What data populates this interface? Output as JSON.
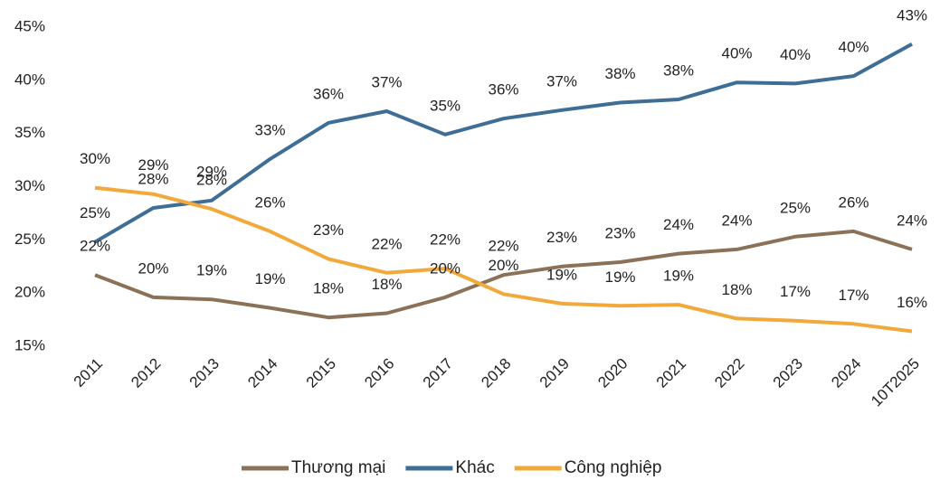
{
  "chart_data": {
    "type": "line",
    "categories": [
      "2011",
      "2012",
      "2013",
      "2014",
      "2015",
      "2016",
      "2017",
      "2018",
      "2019",
      "2020",
      "2021",
      "2022",
      "2023",
      "2024",
      "10T2025"
    ],
    "series": [
      {
        "name": "Thương mại",
        "color": "#8b7158",
        "values": [
          21.7,
          19.6,
          19.4,
          18.6,
          17.7,
          18.1,
          19.6,
          21.7,
          22.5,
          22.9,
          23.7,
          24.1,
          25.3,
          25.8,
          24.1
        ],
        "value_labels": [
          "22%",
          "20%",
          "19%",
          "19%",
          "18%",
          "18%",
          "20%",
          "22%",
          "23%",
          "23%",
          "24%",
          "24%",
          "25%",
          "26%",
          "24%"
        ]
      },
      {
        "name": "Khác",
        "color": "#3e6d96",
        "values": [
          24.8,
          28.0,
          28.7,
          32.6,
          36.0,
          37.1,
          34.9,
          36.4,
          37.2,
          37.9,
          38.2,
          39.8,
          39.7,
          40.4,
          43.4
        ],
        "value_labels": [
          "25%",
          "28%",
          "29%",
          "33%",
          "36%",
          "37%",
          "35%",
          "36%",
          "37%",
          "38%",
          "38%",
          "40%",
          "40%",
          "40%",
          "43%"
        ]
      },
      {
        "name": "Công nghiệp",
        "color": "#f2a93b",
        "values": [
          29.9,
          29.3,
          27.9,
          25.8,
          23.2,
          21.9,
          22.3,
          19.9,
          19.0,
          18.8,
          18.9,
          17.6,
          17.4,
          17.1,
          16.4
        ],
        "value_labels": [
          "30%",
          "29%",
          "28%",
          "26%",
          "23%",
          "22%",
          "22%",
          "20%",
          "19%",
          "19%",
          "19%",
          "18%",
          "17%",
          "17%",
          "16%"
        ]
      }
    ],
    "ylim": [
      15,
      45
    ],
    "yticks": [
      {
        "value": 15,
        "label": "15%"
      },
      {
        "value": 20,
        "label": "20%"
      },
      {
        "value": 25,
        "label": "25%"
      },
      {
        "value": 30,
        "label": "30%"
      },
      {
        "value": 35,
        "label": "35%"
      },
      {
        "value": 40,
        "label": "40%"
      },
      {
        "value": 45,
        "label": "45%"
      }
    ],
    "grid": false,
    "legend": "bottom"
  }
}
